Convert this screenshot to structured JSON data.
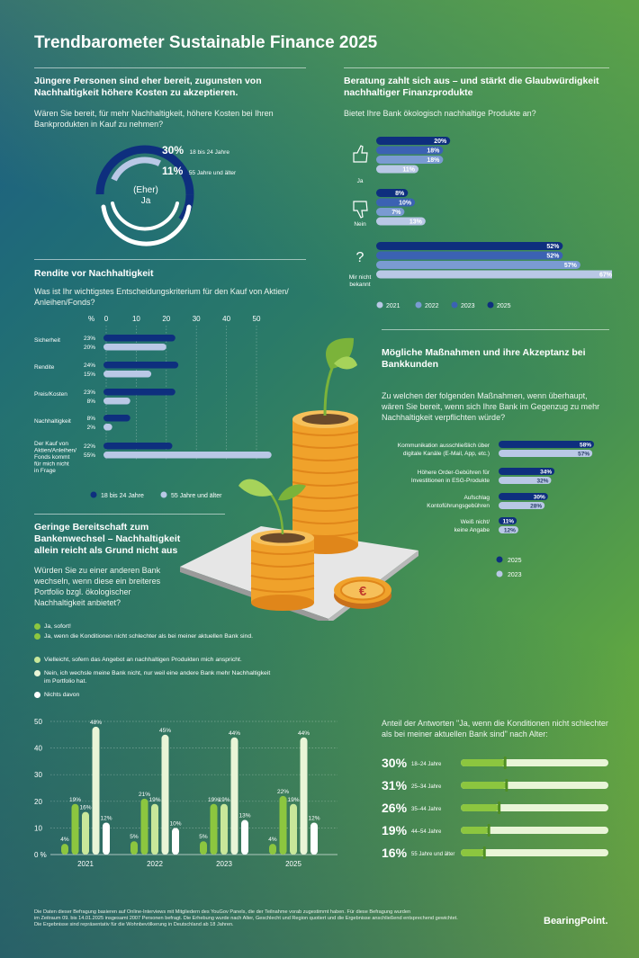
{
  "title": "Trendbarometer Sustainable Finance 2025",
  "colors": {
    "navy": "#0e2f7e",
    "mid_blue": "#3b62b3",
    "light_blue": "#7a9bd2",
    "pale": "#b9c8e6",
    "green": "#8cc63f",
    "light_green": "#c8e79a",
    "pale_green": "#e9f5d7",
    "white": "#ffffff"
  },
  "s1": {
    "heading": "Jüngere Personen sind eher bereit, zugunsten von Nachhaltigkeit höhere Kosten zu akzeptieren.",
    "question": "Wären Sie bereit, für mehr Nachhaltigkeit, höhere Kosten bei Ihren Bankprodukten in Kauf zu nehmen?",
    "center_line1": "(Eher)",
    "center_line2": "Ja",
    "items": [
      {
        "value": "30%",
        "label": "18 bis 24 Jahre"
      },
      {
        "value": "11%",
        "label": "55 Jahre und älter"
      }
    ]
  },
  "s2": {
    "heading": "Beratung zahlt sich aus – und stärkt die Glaubwürdigkeit nachhaltiger Finanzprodukte",
    "question": "Bietet Ihre Bank ökologisch nachhaltige Produkte an?",
    "group_labels": [
      "Ja",
      "Nein",
      "Mir nicht bekannt"
    ],
    "icons": [
      "thumbs-up-icon",
      "thumbs-down-icon",
      "question-mark-icon"
    ],
    "legend": [
      "2021",
      "2022",
      "2023",
      "2025"
    ]
  },
  "s3": {
    "heading": "Rendite vor Nachhaltigkeit",
    "question": "Was ist Ihr wichtigstes Entscheidungskriterium für den Kauf von Aktien/ Anleihen/Fonds?",
    "axis_unit": "%",
    "legend": [
      "18 bis 24 Jahre",
      "55 Jahre und älter"
    ]
  },
  "s4": {
    "heading": "Mögliche Maßnahmen und ihre Akzeptanz bei Bankkunden",
    "question": "Zu welchen der folgenden Maßnahmen, wenn überhaupt, wären Sie bereit, wenn sich Ihre Bank im Gegenzug zu mehr Nachhaltigkeit verpflichten würde?",
    "legend": [
      "2025",
      "2023"
    ]
  },
  "s5": {
    "heading": "Geringe Bereitschaft zum Bankenwechsel – Nachhaltigkeit allein reicht als Grund nicht aus",
    "question": "Würden Sie zu einer anderen Bank wechseln, wenn diese ein breiteres Portfolio bzgl. ökologischer Nachhaltigkeit anbietet?",
    "legend": [
      "Ja, sofort!",
      "Ja, wenn die Konditionen nicht schlechter als bei meiner aktuellen Bank sind.",
      "Vielleicht, sofern das Angebot an nachhaltigen Produkten mich anspricht.",
      "Nein, ich wechsle meine Bank nicht, nur weil eine andere Bank mehr Nachhaltigkeit im Portfolio hat.",
      "Nichts davon"
    ]
  },
  "s6": {
    "heading": "Anteil der Antworten \"Ja, wenn die Konditionen nicht schlechter als bei meiner aktuellen Bank sind\" nach Alter:"
  },
  "footer": {
    "line1": "Die Daten dieser Befragung basieren auf Online-Interviews mit Mitgliedern des YouGov Panels, die der Teilnahme vorab zugestimmt haben. Für diese Befragung wurden",
    "line2": "im Zeitraum 09. bis 14.01.2025 insgesamt 2007 Personen befragt. Die Erhebung wurde nach Alter, Geschlecht und Region quotiert und die Ergebnisse anschließend entsprechend gewichtet.",
    "line3": "Die Ergebnisse sind repräsentativ für die Wohnbevölkerung in Deutschland ab 18 Jahren.",
    "brand": "BearingPoint."
  },
  "chart_data": [
    {
      "id": "bank_offers",
      "type": "bar",
      "orientation": "horizontal",
      "categories": [
        "Ja",
        "Nein",
        "Mir nicht bekannt"
      ],
      "series": [
        {
          "name": "2025",
          "values": [
            20,
            8,
            52
          ]
        },
        {
          "name": "2023",
          "values": [
            18,
            10,
            52
          ]
        },
        {
          "name": "2022",
          "values": [
            18,
            7,
            57
          ]
        },
        {
          "name": "2021",
          "values": [
            11,
            13,
            67
          ]
        }
      ],
      "xlim": [
        0,
        67
      ]
    },
    {
      "id": "criteria",
      "type": "bar",
      "orientation": "horizontal",
      "categories": [
        "Sicherheit",
        "Rendite",
        "Preis/Kosten",
        "Nachhaltigkeit",
        "Der Kauf von Aktien/Anleihen/ Fonds kommt für mich nicht in Frage"
      ],
      "series": [
        {
          "name": "18 bis 24 Jahre",
          "values": [
            23,
            24,
            23,
            8,
            22
          ]
        },
        {
          "name": "55 Jahre und älter",
          "values": [
            20,
            15,
            8,
            2,
            55
          ]
        }
      ],
      "xlim": [
        0,
        55
      ],
      "xticks": [
        0,
        10,
        20,
        30,
        40,
        50
      ]
    },
    {
      "id": "measures",
      "type": "bar",
      "orientation": "horizontal",
      "categories": [
        "Kommunikation ausschließlich über digitale Kanäle (E-Mail, App, etc.)",
        "Höhere Order-Gebühren für Investitionen in ESG-Produkte",
        "Aufschlag Kontoführungsgebühren",
        "Weiß nicht/ keine Angabe"
      ],
      "series": [
        {
          "name": "2025",
          "values": [
            58,
            34,
            30,
            11
          ]
        },
        {
          "name": "2023",
          "values": [
            57,
            32,
            28,
            12
          ]
        }
      ],
      "xlim": [
        0,
        58
      ]
    },
    {
      "id": "switch_bank",
      "type": "bar",
      "categories": [
        "2021",
        "2022",
        "2023",
        "2025"
      ],
      "series": [
        {
          "name": "Ja, sofort!",
          "values": [
            4,
            5,
            5,
            4
          ]
        },
        {
          "name": "Ja, wenn die Konditionen nicht schlechter als bei meiner aktuellen Bank sind.",
          "values": [
            19,
            21,
            19,
            22
          ]
        },
        {
          "name": "Vielleicht, sofern das Angebot an nachhaltigen Produkten mich anspricht.",
          "values": [
            16,
            19,
            19,
            19
          ]
        },
        {
          "name": "Nein, ich wechsle meine Bank nicht, nur weil eine andere Bank mehr Nachhaltigkeit im Portfolio hat.",
          "values": [
            48,
            45,
            44,
            44
          ]
        },
        {
          "name": "Nichts davon",
          "values": [
            12,
            10,
            13,
            12
          ]
        }
      ],
      "ylim": [
        0,
        50
      ],
      "yticks": [
        0,
        10,
        20,
        30,
        40,
        50
      ]
    },
    {
      "id": "by_age",
      "type": "bar",
      "orientation": "horizontal",
      "categories": [
        "18–24 Jahre",
        "25–34 Jahre",
        "35–44 Jahre",
        "44–54 Jahre",
        "55 Jahre und älter"
      ],
      "values": [
        30,
        31,
        26,
        19,
        16
      ],
      "xlim": [
        0,
        100
      ]
    }
  ]
}
